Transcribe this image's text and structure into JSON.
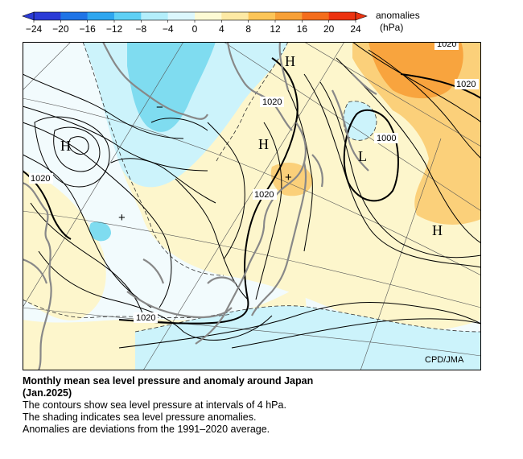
{
  "colorbar": {
    "ticks": [
      "−24",
      "−20",
      "−16",
      "−12",
      "−8",
      "−4",
      "0",
      "4",
      "8",
      "12",
      "16",
      "20",
      "24"
    ],
    "label_line1": "anomalies",
    "label_line2": "(hPa)",
    "colors": [
      "#2b3bd6",
      "#1f74e6",
      "#2ea6ef",
      "#5fd0f5",
      "#b3eefb",
      "#dcf7fd",
      "#fdfad4",
      "#fde9a4",
      "#fcc558",
      "#f7a037",
      "#f46d1c",
      "#ec3310"
    ]
  },
  "map": {
    "credit": "CPD/JMA",
    "isobar_labels": [
      "1020",
      "1020",
      "1020",
      "1000",
      "1020",
      "1020"
    ],
    "pressure_centers": [
      "H",
      "H",
      "H",
      "L",
      "H",
      "H"
    ],
    "anomaly_signs": [
      "−",
      "+",
      "+",
      "+"
    ],
    "colors": {
      "background": "#f2fbfd",
      "positive_light": "#fdf6cc",
      "positive_mid": "#fbd07a",
      "positive_strong": "#f8a43e",
      "negative_light": "#ccf3fb",
      "negative_mid": "#7fdcf0",
      "coast": "#888888"
    }
  },
  "caption": {
    "title_line1": "Monthly mean sea level pressure and anomaly around Japan",
    "title_line2": "(Jan.2025)",
    "line1": "The contours show sea level pressure at intervals of 4 hPa.",
    "line2": "The shading indicates sea level pressure anomalies.",
    "line3": "Anomalies are deviations from the 1991–2020 average."
  }
}
